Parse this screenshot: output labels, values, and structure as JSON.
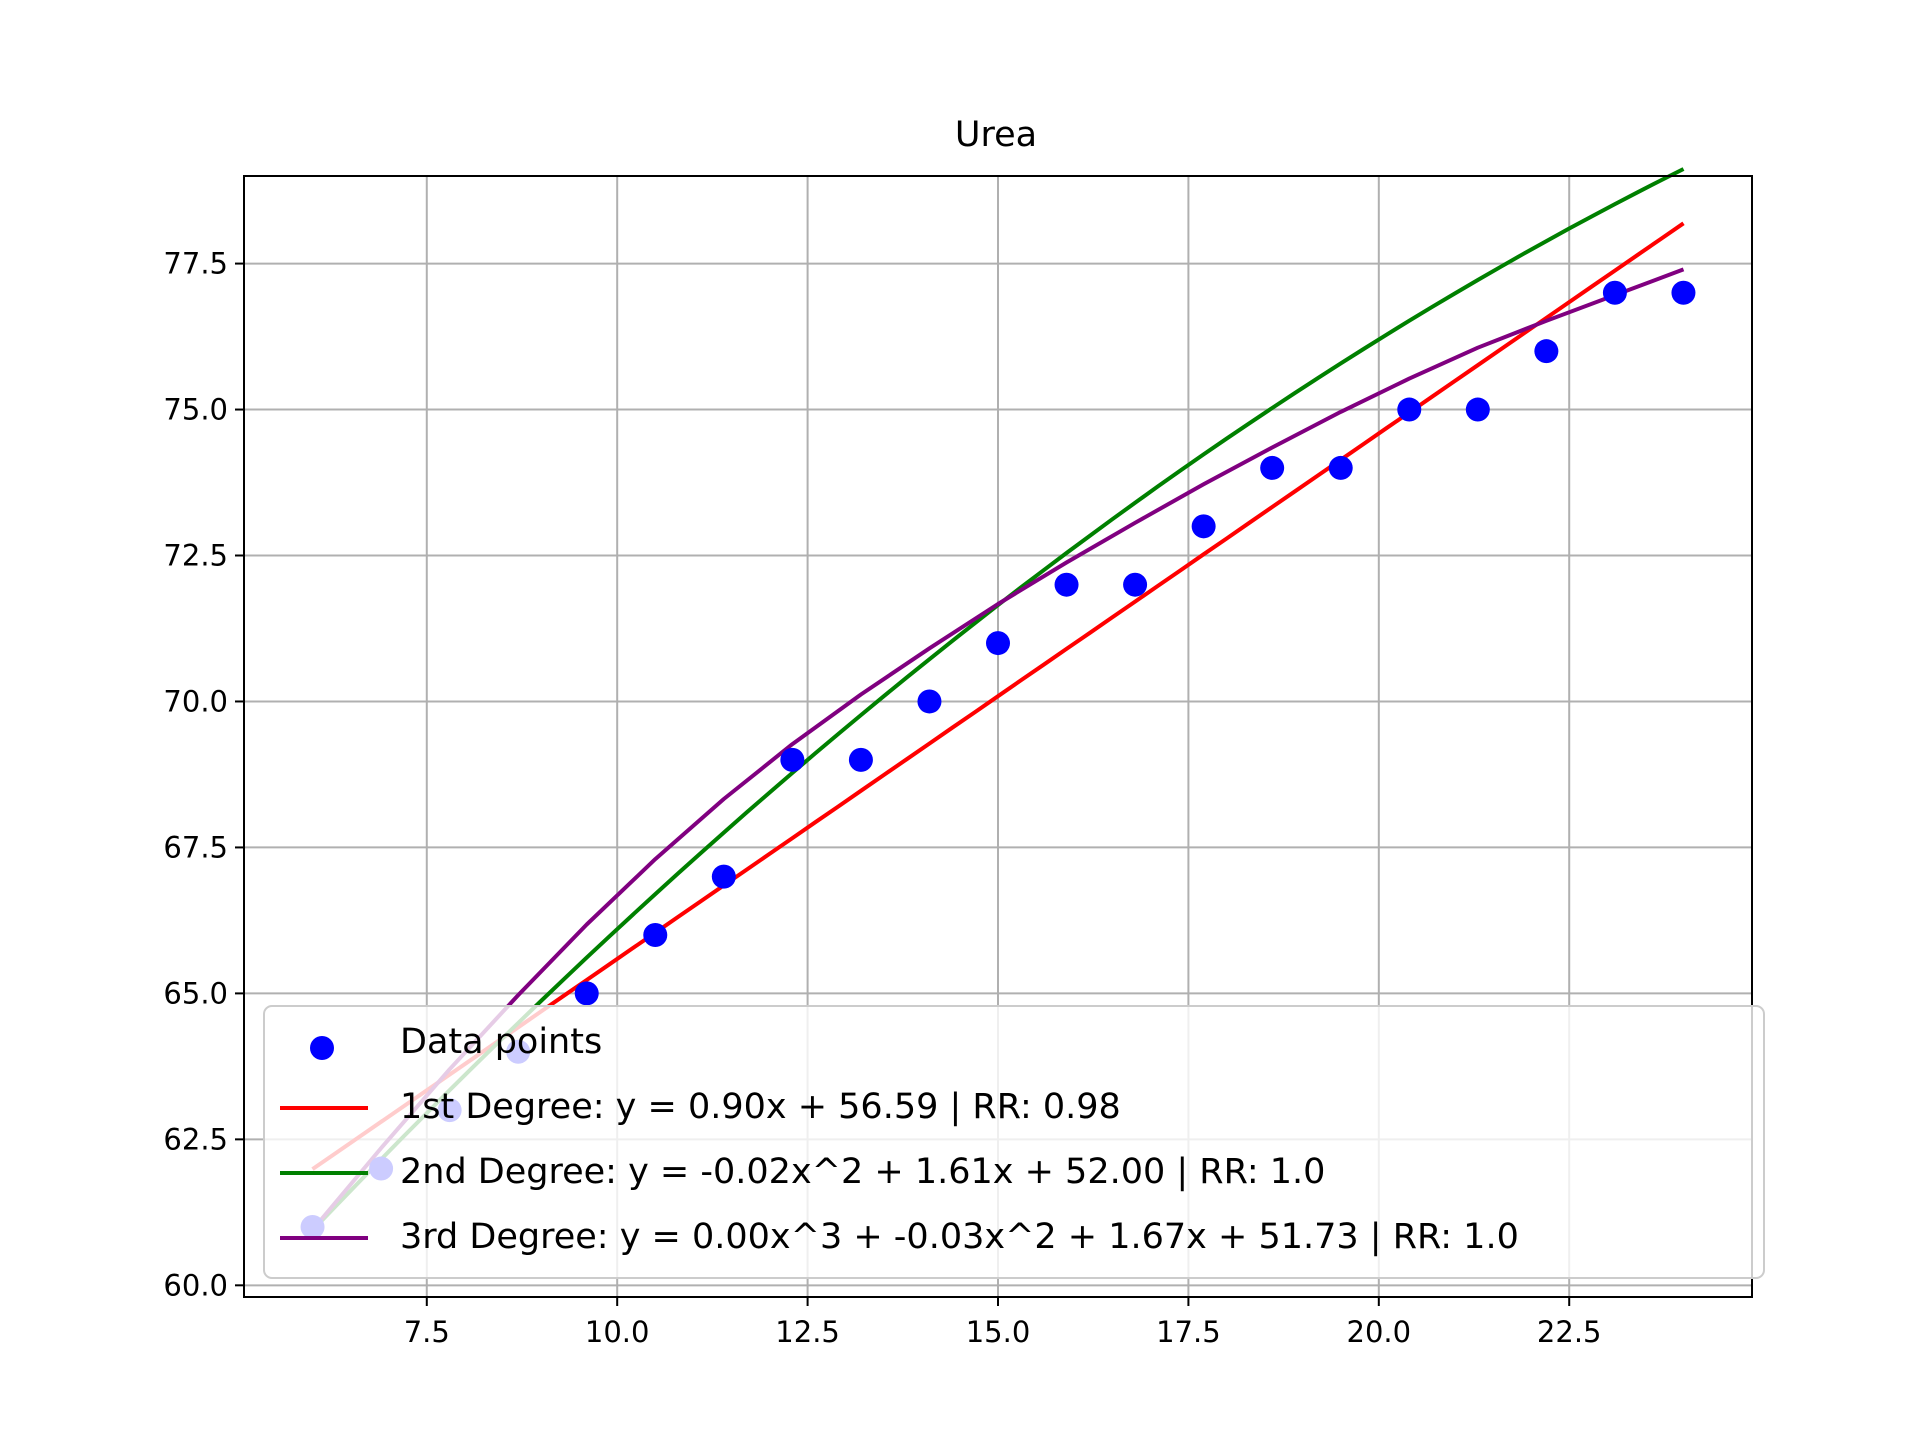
{
  "chart_data": {
    "type": "scatter",
    "title": "Urea",
    "xlabel": "",
    "ylabel": "",
    "xlim": [
      5.1,
      24.9
    ],
    "ylim": [
      59.8,
      79.0
    ],
    "xticks": [
      "7.5",
      "10.0",
      "12.5",
      "15.0",
      "17.5",
      "20.0",
      "22.5"
    ],
    "yticks": [
      "60.0",
      "62.5",
      "65.0",
      "67.5",
      "70.0",
      "72.5",
      "75.0",
      "77.5"
    ],
    "grid": true,
    "legend_position": "lower right",
    "points": {
      "name": "Data points",
      "color": "#0000ff",
      "x": [
        6.0,
        6.9,
        7.8,
        8.7,
        9.6,
        10.5,
        11.4,
        12.3,
        13.2,
        14.1,
        15.0,
        15.9,
        16.8,
        17.7,
        18.6,
        19.5,
        20.4,
        21.3,
        22.2,
        23.1,
        24.0
      ],
      "y": [
        61,
        62,
        63,
        64,
        65,
        66,
        67,
        69,
        69,
        70,
        71,
        72,
        72,
        73,
        74,
        74,
        75,
        75,
        76,
        77,
        77
      ]
    },
    "series": [
      {
        "name": "1st Degree: y = 0.90x + 56.59 | RR: 0.98",
        "color": "#ff0000",
        "coefficients": [
          0.9,
          56.59
        ],
        "x_range": [
          6.0,
          24.0
        ]
      },
      {
        "name": "2nd Degree: y = -0.02x^2 + 1.61x + 52.00 | RR: 1.0",
        "color": "#008000",
        "coefficients": [
          -0.02,
          1.61,
          52.0
        ],
        "x_range": [
          6.0,
          24.0
        ]
      },
      {
        "name": "3rd Degree: y = 0.00x^3 + -0.03x^2 + 1.67x + 51.73 | RR: 1.0",
        "color": "#800080",
        "x": [
          6.0,
          6.9,
          7.8,
          8.7,
          9.6,
          10.5,
          11.4,
          12.3,
          13.2,
          14.1,
          15.0,
          15.9,
          16.8,
          17.7,
          18.6,
          19.5,
          20.4,
          21.3,
          22.2,
          23.1,
          24.0
        ],
        "y": [
          60.95,
          62.35,
          63.7,
          64.97,
          66.18,
          67.3,
          68.33,
          69.27,
          70.12,
          70.91,
          71.67,
          72.38,
          73.06,
          73.72,
          74.35,
          74.96,
          75.53,
          76.06,
          76.52,
          76.96,
          77.4
        ]
      }
    ]
  }
}
